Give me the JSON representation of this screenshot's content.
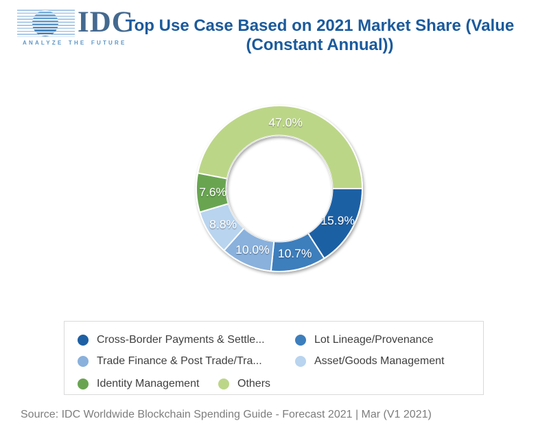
{
  "logo": {
    "text": "IDC",
    "tagline": "ANALYZE THE FUTURE"
  },
  "title": {
    "line1": "Top Use Case Based on 2021 Market Share (Value",
    "line2": "(Constant Annual))",
    "color": "#1b5a9c"
  },
  "chart_data": {
    "type": "pie",
    "subtype": "donut",
    "title": "Top Use Case Based on 2021 Market Share (Value (Constant Annual))",
    "start_angle_deg": 90,
    "direction": "clockwise",
    "inner_radius_ratio": 0.64,
    "data_labels_color": "#ffffff",
    "legend_position": "bottom",
    "slices": [
      {
        "label": "Cross-Border Payments & Settle...",
        "value": 15.9,
        "data_label": "15.9%",
        "color": "#1e60a4"
      },
      {
        "label": "Lot Lineage/Provenance",
        "value": 10.7,
        "data_label": "10.7%",
        "color": "#3d7ebd"
      },
      {
        "label": "Trade Finance & Post Trade/Tra...",
        "value": 10.0,
        "data_label": "10.0%",
        "color": "#89b1dc"
      },
      {
        "label": "Asset/Goods Management",
        "value": 8.8,
        "data_label": "8.8%",
        "color": "#b8d4ef"
      },
      {
        "label": "Identity Management",
        "value": 7.6,
        "data_label": "7.6%",
        "color": "#69a551"
      },
      {
        "label": "Others",
        "value": 47.0,
        "data_label": "47.0%",
        "color": "#bcd688"
      }
    ]
  },
  "source": {
    "text": "Source: IDC Worldwide Blockchain Spending Guide - Forecast 2021 | Mar (V1 2021)"
  }
}
